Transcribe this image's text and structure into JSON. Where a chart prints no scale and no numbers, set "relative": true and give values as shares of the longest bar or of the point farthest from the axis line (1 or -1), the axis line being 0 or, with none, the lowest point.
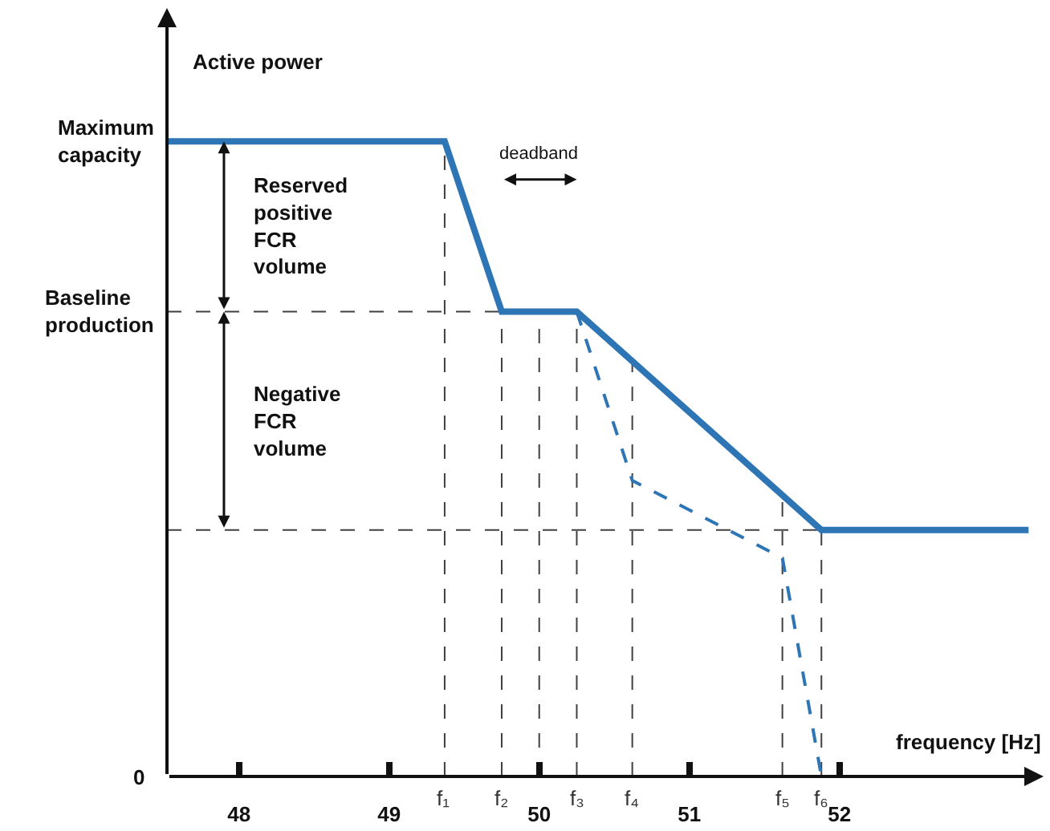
{
  "chart_data": {
    "type": "line",
    "relative": true,
    "xlabel": "frequency [Hz]",
    "ylabel": "Active power",
    "xlim": [
      47.52,
      53.36
    ],
    "xticks": [
      48,
      49,
      50,
      51,
      52
    ],
    "series": [
      {
        "color": "#2e75b6",
        "line_style": "solid",
        "x": [
          47.53,
          49.37,
          49.75,
          50.25,
          51.88,
          53.26
        ],
        "values": [
          1,
          1,
          0.732,
          0.732,
          0.388,
          0.388
        ]
      },
      {
        "color": "#2e75b6",
        "line_style": "dashed",
        "x": [
          50.25,
          50.62,
          51.62,
          51.88
        ],
        "values": [
          0.732,
          0.466,
          0.344,
          0
        ]
      }
    ],
    "ref_lines": [
      {
        "axis": "y",
        "value": 0.732,
        "label": "Baseline production",
        "line_style": "dashed",
        "color": "#404040"
      },
      {
        "axis": "y",
        "value": 0.388,
        "label": null,
        "line_style": "dashed",
        "color": "#404040"
      },
      {
        "axis": "x",
        "value": 49.37,
        "label": "f₁",
        "line_style": "dashed",
        "color": "#404040"
      },
      {
        "axis": "x",
        "value": 49.75,
        "label": "f₂",
        "line_style": "dashed",
        "color": "#404040"
      },
      {
        "axis": "x",
        "value": 50,
        "label": null,
        "line_style": "dashed",
        "color": "#404040"
      },
      {
        "axis": "x",
        "value": 50.25,
        "label": "f₃",
        "line_style": "dashed",
        "color": "#404040"
      },
      {
        "axis": "x",
        "value": 50.62,
        "label": "f₄",
        "line_style": "dashed",
        "color": "#404040"
      },
      {
        "axis": "x",
        "value": 51.62,
        "label": "f₅",
        "line_style": "dashed",
        "color": "#404040"
      },
      {
        "axis": "x",
        "value": 51.88,
        "label": "f₆",
        "line_style": "dashed",
        "color": "#404040"
      }
    ],
    "annotations": [
      "Maximum capacity",
      "0",
      "Reserved positive FCR volume",
      "Negative FCR volume",
      "deadband"
    ],
    "marker": "none"
  }
}
